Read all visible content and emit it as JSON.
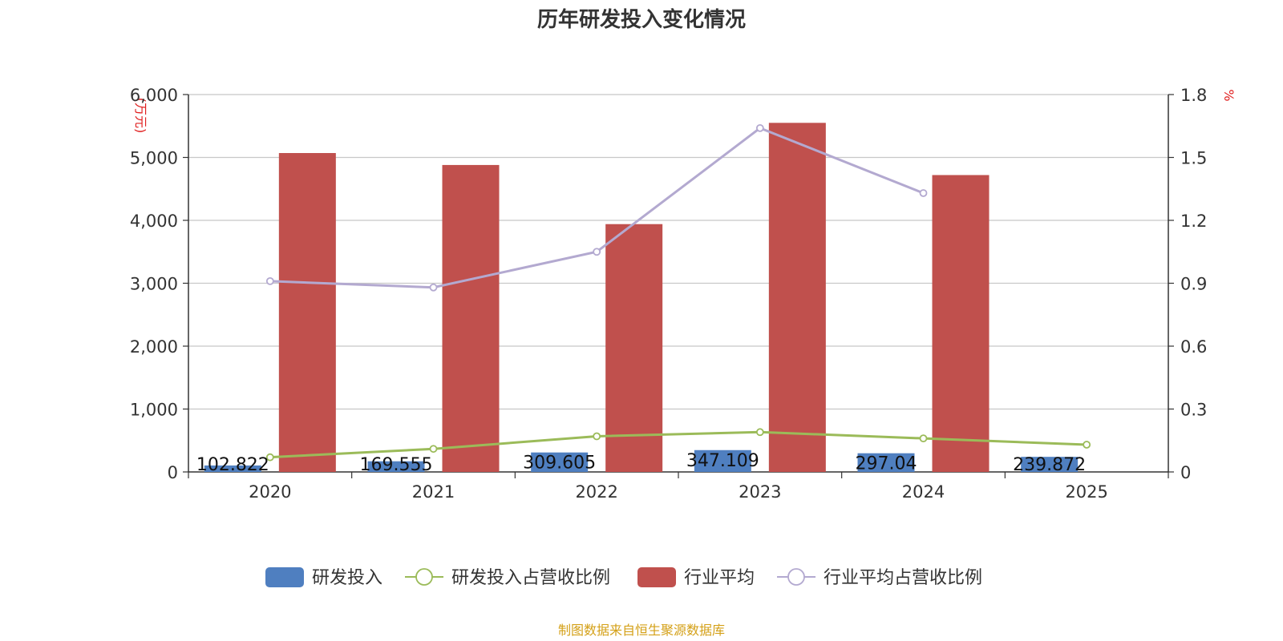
{
  "chart_data": {
    "type": "bar",
    "title": "历年研发投入变化情况",
    "categories": [
      "2020",
      "2021",
      "2022",
      "2023",
      "2024",
      "2025"
    ],
    "y_left": {
      "unit": "(万元)",
      "ticks": [
        "0",
        "1,000",
        "2,000",
        "3,000",
        "4,000",
        "5,000",
        "6,000"
      ],
      "range": [
        0,
        6000
      ]
    },
    "y_right": {
      "unit": "%",
      "ticks": [
        "0",
        "0.3",
        "0.6",
        "0.9",
        "1.2",
        "1.5",
        "1.8"
      ],
      "range": [
        0,
        1.8
      ]
    },
    "series": [
      {
        "name": "研发投入",
        "kind": "bar",
        "axis": "left",
        "color": "#4f7fc0",
        "values": [
          102.822,
          169.555,
          309.605,
          347.109,
          297.04,
          239.872
        ],
        "labels": [
          "102.822",
          "169.555",
          "309.605",
          "347.109",
          "297.04",
          "239.872"
        ]
      },
      {
        "name": "研发投入占营收比例",
        "kind": "line",
        "axis": "right",
        "color": "#9bbb59",
        "values": [
          0.07,
          0.11,
          0.17,
          0.19,
          0.16,
          0.13
        ]
      },
      {
        "name": "行业平均",
        "kind": "bar",
        "axis": "left",
        "color": "#c0504d",
        "values": [
          5070,
          4880,
          3940,
          5550,
          4720,
          null
        ]
      },
      {
        "name": "行业平均占营收比例",
        "kind": "line",
        "axis": "right",
        "color": "#b3a9d0",
        "values": [
          0.91,
          0.88,
          1.05,
          1.64,
          1.33,
          null
        ]
      }
    ],
    "grid": true,
    "legend_position": "bottom"
  },
  "source_note": "制图数据来自恒生聚源数据库"
}
